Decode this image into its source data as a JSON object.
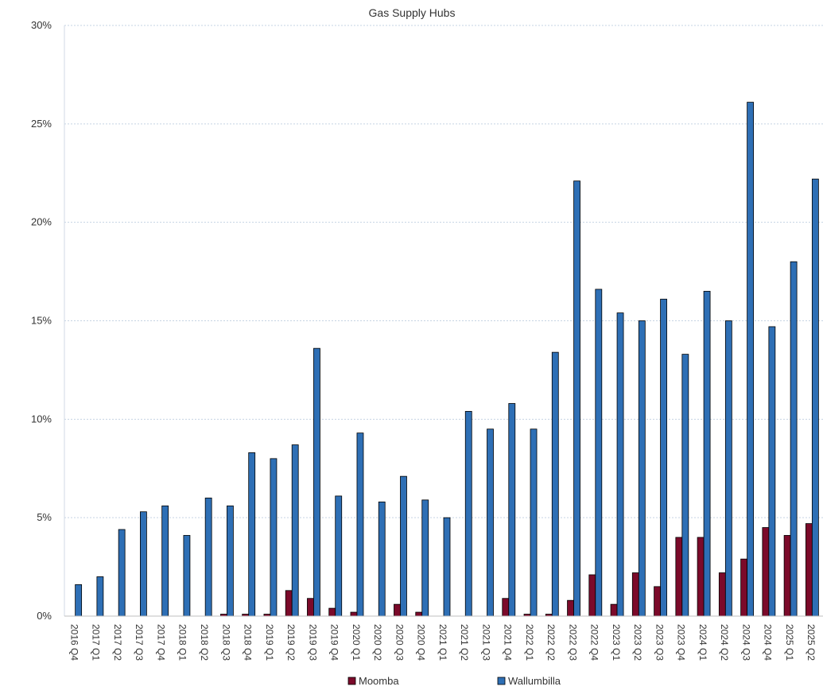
{
  "chart_data": {
    "type": "bar",
    "title": "Gas Supply Hubs",
    "xlabel": "",
    "ylabel": "",
    "ylim": [
      0,
      30
    ],
    "y_ticks": [
      "0%",
      "5%",
      "10%",
      "15%",
      "20%",
      "25%",
      "30%"
    ],
    "y_tick_values": [
      0,
      5,
      10,
      15,
      20,
      25,
      30
    ],
    "grid": true,
    "legend_position": "bottom",
    "categories": [
      "2016 Q4",
      "2017 Q1",
      "2017 Q2",
      "2017 Q3",
      "2017 Q4",
      "2018 Q1",
      "2018 Q2",
      "2018 Q3",
      "2018 Q4",
      "2019 Q1",
      "2019 Q2",
      "2019 Q3",
      "2019 Q4",
      "2020 Q1",
      "2020 Q2",
      "2020 Q3",
      "2020 Q4",
      "2021 Q1",
      "2021 Q2",
      "2021 Q3",
      "2021 Q4",
      "2022 Q1",
      "2022 Q2",
      "2022 Q3",
      "2022 Q4",
      "2023 Q1",
      "2023 Q2",
      "2023 Q3",
      "2023 Q4",
      "2024 Q1",
      "2024 Q2",
      "2024 Q3",
      "2024 Q4",
      "2025 Q1",
      "2025 Q2"
    ],
    "series": [
      {
        "name": "Moomba",
        "color": "#7b0a2a",
        "values": [
          0,
          0,
          0,
          0,
          0,
          0,
          0,
          0.1,
          0.1,
          0.1,
          1.3,
          0.9,
          0.4,
          0.2,
          0,
          0.6,
          0.2,
          0,
          0,
          0,
          0.9,
          0.1,
          0.1,
          0.8,
          2.1,
          0.6,
          2.2,
          1.5,
          4.0,
          4.0,
          2.2,
          2.9,
          4.5,
          4.1,
          4.7
        ]
      },
      {
        "name": "Wallumbilla",
        "color": "#2e6fb5",
        "values": [
          1.6,
          2.0,
          4.4,
          5.3,
          5.6,
          4.1,
          6.0,
          5.6,
          8.3,
          8.0,
          8.7,
          13.6,
          6.1,
          9.3,
          5.8,
          7.1,
          5.9,
          5.0,
          10.4,
          9.5,
          10.8,
          9.5,
          13.4,
          22.1,
          16.6,
          15.4,
          15.0,
          16.1,
          13.3,
          16.5,
          15.0,
          26.1,
          14.7,
          18.0,
          22.2
        ]
      }
    ]
  }
}
